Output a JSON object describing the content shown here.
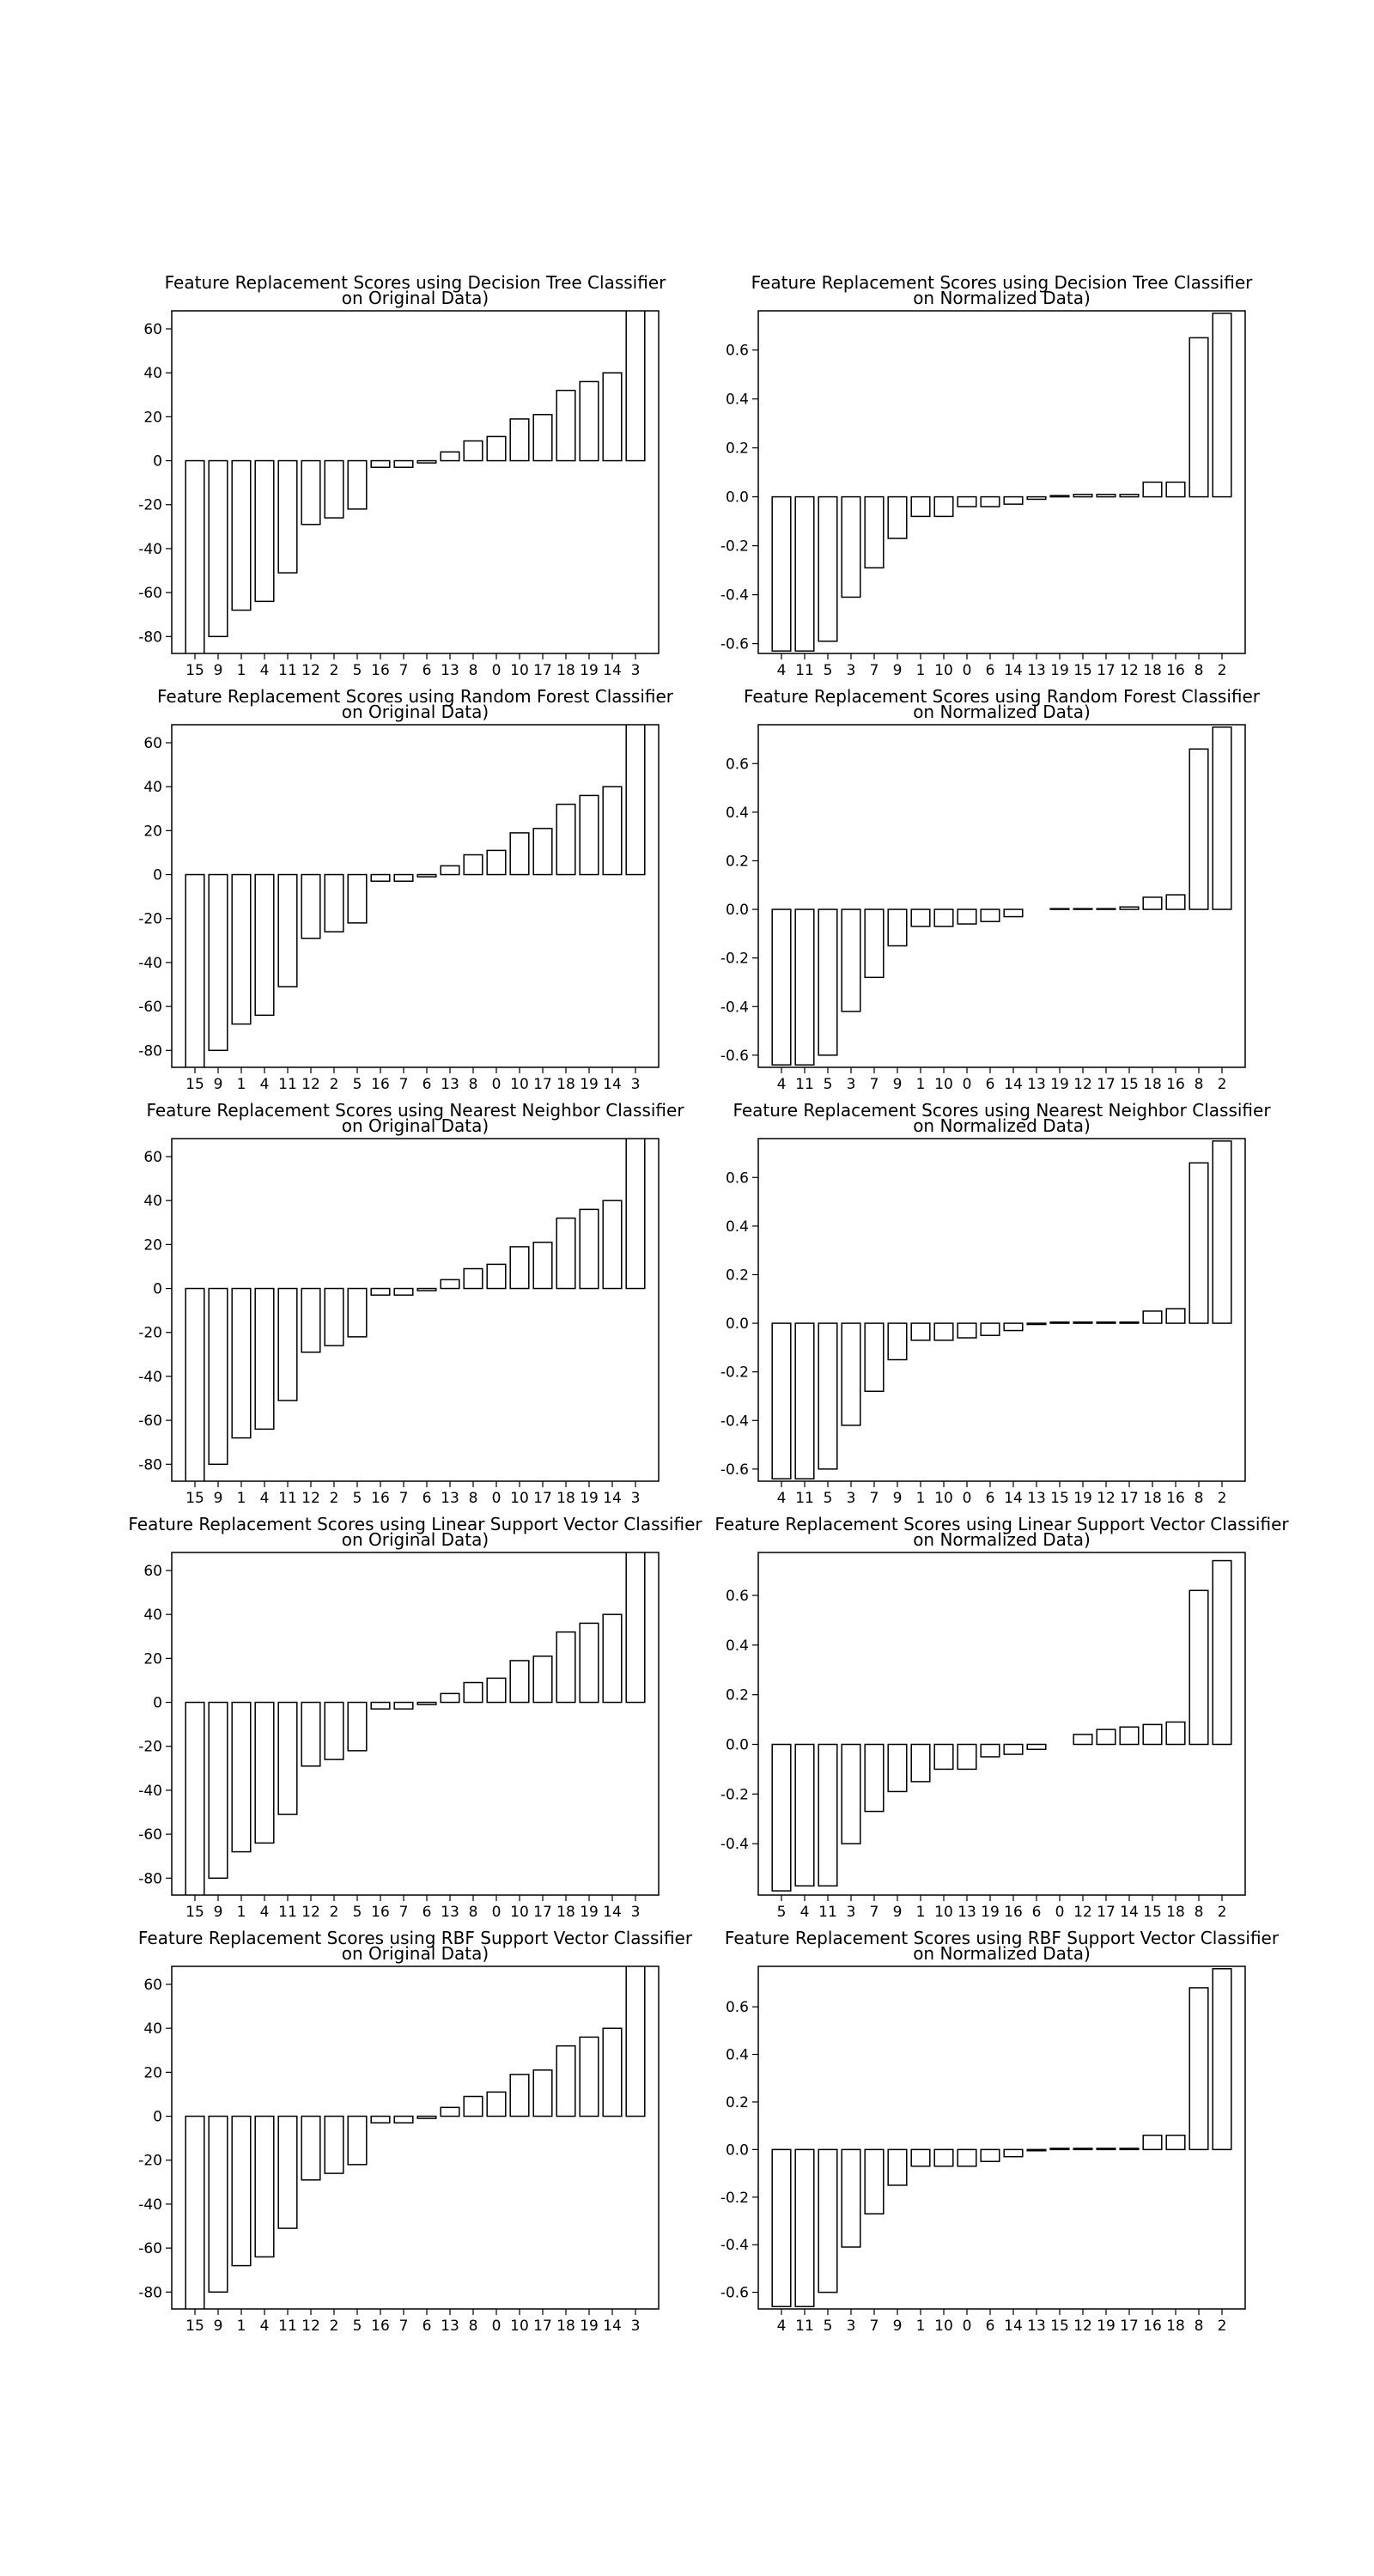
{
  "chart_data": [
    {
      "type": "bar",
      "title": [
        "Feature Replacement Scores using Decision Tree Classifier",
        "on Original Data)"
      ],
      "categories": [
        "15",
        "9",
        "1",
        "4",
        "11",
        "12",
        "2",
        "5",
        "16",
        "7",
        "6",
        "13",
        "8",
        "0",
        "10",
        "17",
        "18",
        "19",
        "14",
        "3"
      ],
      "values": [
        -90,
        -80,
        -68,
        -64,
        -51,
        -29,
        -26,
        -22,
        -3,
        -3,
        -1,
        4,
        9,
        11,
        19,
        21,
        32,
        36,
        40,
        70
      ],
      "ylim": [
        -87.7,
        68.2
      ],
      "yticks": [
        -80,
        -60,
        -40,
        -20,
        0,
        20,
        40,
        60
      ],
      "color": "#ffffff",
      "edgecolor": "#000000"
    },
    {
      "type": "bar",
      "title": [
        "Feature Replacement Scores using Decision Tree Classifier",
        "on Normalized Data)"
      ],
      "categories": [
        "4",
        "11",
        "5",
        "3",
        "7",
        "9",
        "1",
        "10",
        "0",
        "6",
        "14",
        "13",
        "19",
        "15",
        "17",
        "12",
        "18",
        "16",
        "8",
        "2"
      ],
      "values": [
        -0.63,
        -0.63,
        -0.59,
        -0.41,
        -0.29,
        -0.17,
        -0.08,
        -0.08,
        -0.04,
        -0.04,
        -0.03,
        -0.01,
        0.005,
        0.01,
        0.01,
        0.01,
        0.06,
        0.06,
        0.65,
        0.75
      ],
      "ylim": [
        -0.64,
        0.76
      ],
      "yticks": [
        -0.6,
        -0.4,
        -0.2,
        {
          "value": 0,
          "label": "0.0"
        },
        0.2,
        0.4,
        0.6
      ],
      "color": "#ffffff",
      "edgecolor": "#000000"
    },
    {
      "type": "bar",
      "title": [
        "Feature Replacement Scores using Random Forest Classifier",
        "on Original Data)"
      ],
      "categories": [
        "15",
        "9",
        "1",
        "4",
        "11",
        "12",
        "2",
        "5",
        "16",
        "7",
        "6",
        "13",
        "8",
        "0",
        "10",
        "17",
        "18",
        "19",
        "14",
        "3"
      ],
      "values": [
        -90,
        -80,
        -68,
        -64,
        -51,
        -29,
        -26,
        -22,
        -3,
        -3,
        -1,
        4,
        9,
        11,
        19,
        21,
        32,
        36,
        40,
        70
      ],
      "ylim": [
        -87.7,
        68.2
      ],
      "yticks": [
        -80,
        -60,
        -40,
        -20,
        0,
        20,
        40,
        60
      ],
      "color": "#ffffff",
      "edgecolor": "#000000"
    },
    {
      "type": "bar",
      "title": [
        "Feature Replacement Scores using Random Forest Classifier",
        "on Normalized Data)"
      ],
      "categories": [
        "4",
        "11",
        "5",
        "3",
        "7",
        "9",
        "1",
        "10",
        "0",
        "6",
        "14",
        "13",
        "19",
        "12",
        "17",
        "15",
        "18",
        "16",
        "8",
        "2"
      ],
      "values": [
        -0.64,
        -0.64,
        -0.6,
        -0.42,
        -0.28,
        -0.15,
        -0.07,
        -0.07,
        -0.06,
        -0.05,
        -0.03,
        0.0,
        0.003,
        0.003,
        0.003,
        0.01,
        0.05,
        0.06,
        0.66,
        0.75
      ],
      "ylim": [
        -0.65,
        0.76
      ],
      "yticks": [
        -0.6,
        -0.4,
        -0.2,
        {
          "value": 0,
          "label": "0.0"
        },
        0.2,
        0.4,
        0.6
      ],
      "color": "#ffffff",
      "edgecolor": "#000000"
    },
    {
      "type": "bar",
      "title": [
        "Feature Replacement Scores using Nearest Neighbor Classifier",
        "on Original Data)"
      ],
      "categories": [
        "15",
        "9",
        "1",
        "4",
        "11",
        "12",
        "2",
        "5",
        "16",
        "7",
        "6",
        "13",
        "8",
        "0",
        "10",
        "17",
        "18",
        "19",
        "14",
        "3"
      ],
      "values": [
        -90,
        -80,
        -68,
        -64,
        -51,
        -29,
        -26,
        -22,
        -3,
        -3,
        -1,
        4,
        9,
        11,
        19,
        21,
        32,
        36,
        40,
        70
      ],
      "ylim": [
        -87.7,
        68.2
      ],
      "yticks": [
        -80,
        -60,
        -40,
        -20,
        0,
        20,
        40,
        60
      ],
      "color": "#ffffff",
      "edgecolor": "#000000"
    },
    {
      "type": "bar",
      "title": [
        "Feature Replacement Scores using Nearest Neighbor Classifier",
        "on Normalized Data)"
      ],
      "categories": [
        "4",
        "11",
        "5",
        "3",
        "7",
        "9",
        "1",
        "10",
        "0",
        "6",
        "14",
        "13",
        "15",
        "19",
        "12",
        "17",
        "18",
        "16",
        "8",
        "2"
      ],
      "values": [
        -0.64,
        -0.64,
        -0.6,
        -0.42,
        -0.28,
        -0.15,
        -0.07,
        -0.07,
        -0.06,
        -0.05,
        -0.03,
        -0.005,
        0.005,
        0.005,
        0.005,
        0.005,
        0.05,
        0.06,
        0.66,
        0.75
      ],
      "ylim": [
        -0.65,
        0.76
      ],
      "yticks": [
        -0.6,
        -0.4,
        -0.2,
        {
          "value": 0,
          "label": "0.0"
        },
        0.2,
        0.4,
        0.6
      ],
      "color": "#ffffff",
      "edgecolor": "#000000"
    },
    {
      "type": "bar",
      "title": [
        "Feature Replacement Scores using Linear Support Vector Classifier",
        "on Original Data)"
      ],
      "categories": [
        "15",
        "9",
        "1",
        "4",
        "11",
        "12",
        "2",
        "5",
        "16",
        "7",
        "6",
        "13",
        "8",
        "0",
        "10",
        "17",
        "18",
        "19",
        "14",
        "3"
      ],
      "values": [
        -90,
        -80,
        -68,
        -64,
        -51,
        -29,
        -26,
        -22,
        -3,
        -3,
        -1,
        4,
        9,
        11,
        19,
        21,
        32,
        36,
        40,
        70
      ],
      "ylim": [
        -87.7,
        68.2
      ],
      "yticks": [
        -80,
        -60,
        -40,
        -20,
        0,
        20,
        40,
        60
      ],
      "color": "#ffffff",
      "edgecolor": "#000000"
    },
    {
      "type": "bar",
      "title": [
        "Feature Replacement Scores using Linear Support Vector Classifier",
        "on Normalized Data)"
      ],
      "categories": [
        "5",
        "4",
        "11",
        "3",
        "7",
        "9",
        "1",
        "10",
        "13",
        "19",
        "16",
        "6",
        "0",
        "12",
        "17",
        "14",
        "15",
        "18",
        "8",
        "2"
      ],
      "values": [
        -0.59,
        -0.57,
        -0.57,
        -0.4,
        -0.27,
        -0.19,
        -0.15,
        -0.1,
        -0.1,
        -0.05,
        -0.04,
        -0.02,
        0.0,
        0.04,
        0.06,
        0.07,
        0.08,
        0.09,
        0.62,
        0.74
      ],
      "ylim": [
        -0.607,
        0.773
      ],
      "yticks": [
        -0.4,
        -0.2,
        {
          "value": 0,
          "label": "0.0"
        },
        0.2,
        0.4,
        0.6
      ],
      "color": "#ffffff",
      "edgecolor": "#000000"
    },
    {
      "type": "bar",
      "title": [
        "Feature Replacement Scores using RBF Support Vector Classifier",
        "on Original Data)"
      ],
      "categories": [
        "15",
        "9",
        "1",
        "4",
        "11",
        "12",
        "2",
        "5",
        "16",
        "7",
        "6",
        "13",
        "8",
        "0",
        "10",
        "17",
        "18",
        "19",
        "14",
        "3"
      ],
      "values": [
        -90,
        -80,
        -68,
        -64,
        -51,
        -29,
        -26,
        -22,
        -3,
        -3,
        -1,
        4,
        9,
        11,
        19,
        21,
        32,
        36,
        40,
        70
      ],
      "ylim": [
        -87.7,
        68.2
      ],
      "yticks": [
        -80,
        -60,
        -40,
        -20,
        0,
        20,
        40,
        60
      ],
      "color": "#ffffff",
      "edgecolor": "#000000"
    },
    {
      "type": "bar",
      "title": [
        "Feature Replacement Scores using RBF Support Vector Classifier",
        "on Normalized Data)"
      ],
      "categories": [
        "4",
        "11",
        "5",
        "3",
        "7",
        "9",
        "1",
        "10",
        "0",
        "6",
        "14",
        "13",
        "15",
        "12",
        "19",
        "17",
        "16",
        "18",
        "8",
        "2"
      ],
      "values": [
        -0.66,
        -0.66,
        -0.6,
        -0.41,
        -0.27,
        -0.15,
        -0.07,
        -0.07,
        -0.07,
        -0.05,
        -0.03,
        -0.005,
        0.005,
        0.005,
        0.005,
        0.005,
        0.06,
        0.06,
        0.68,
        0.76
      ],
      "ylim": [
        -0.67,
        0.77
      ],
      "yticks": [
        -0.6,
        -0.4,
        -0.2,
        {
          "value": 0,
          "label": "0.0"
        },
        0.2,
        0.4,
        0.6
      ],
      "color": "#ffffff",
      "edgecolor": "#000000"
    }
  ]
}
